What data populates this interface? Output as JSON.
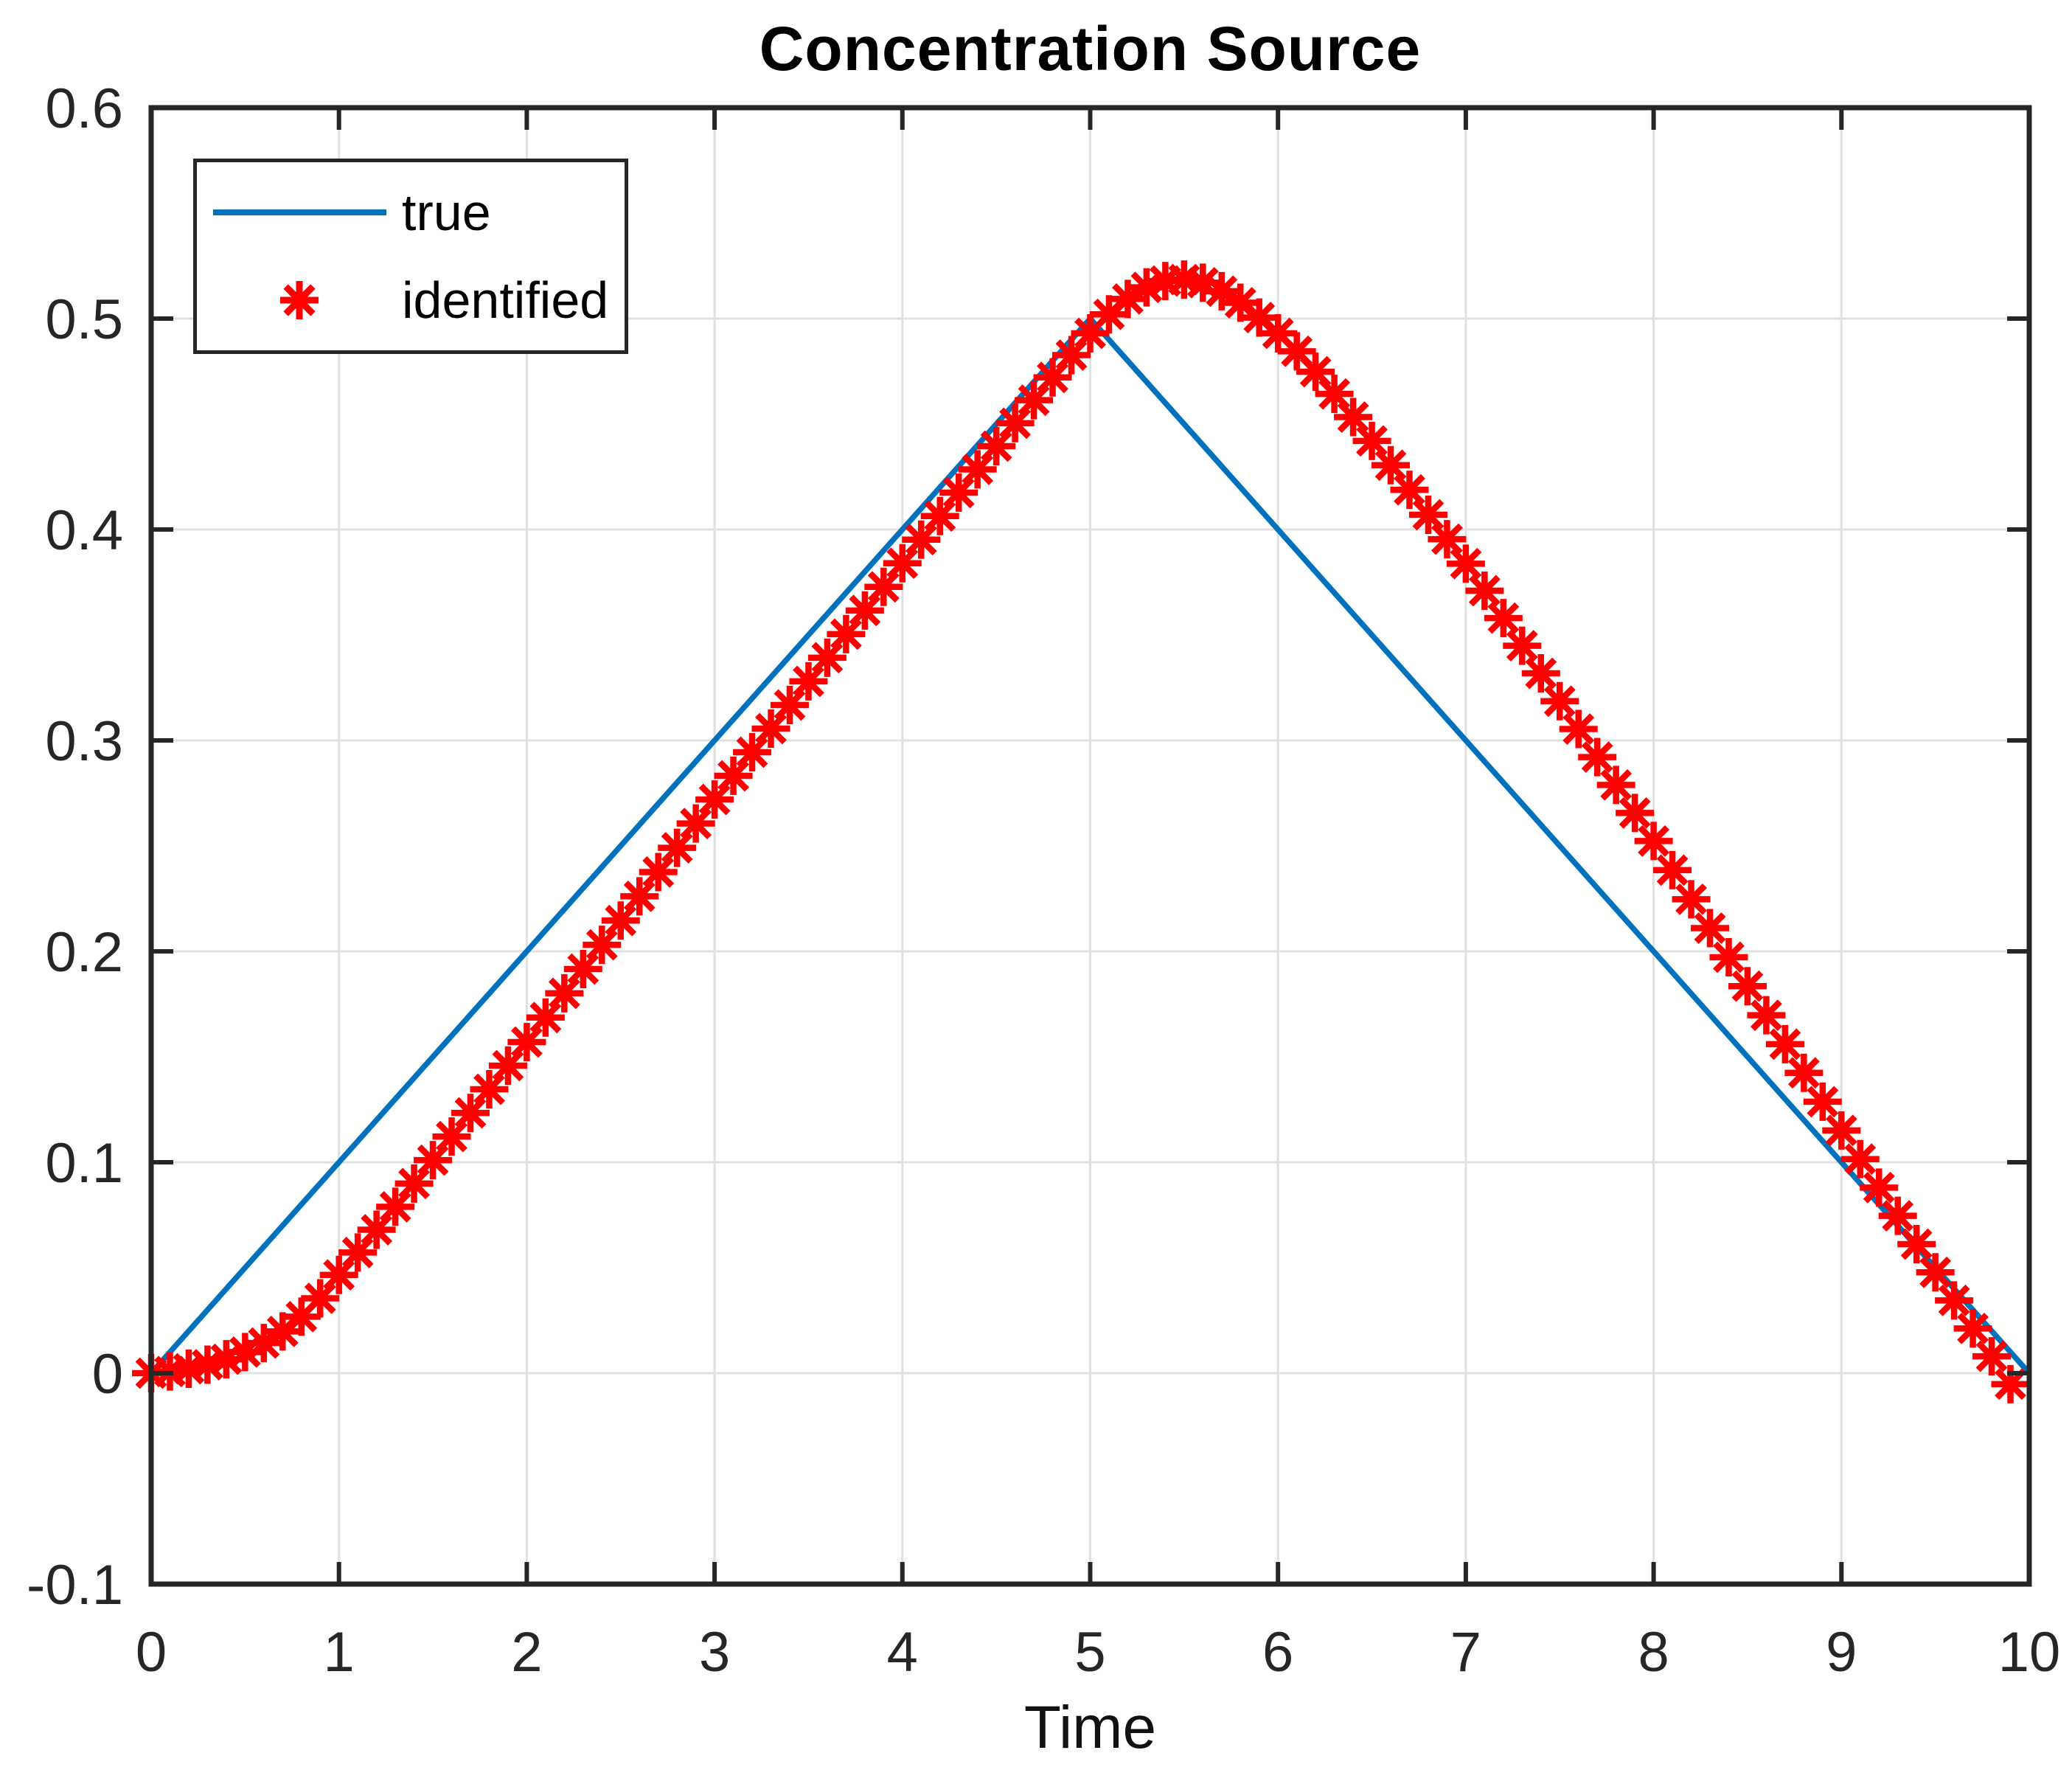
{
  "window": {
    "background": "#ffffff"
  },
  "figure": {
    "title": "Concentration Source",
    "xlabel": "Time"
  },
  "legend": {
    "position": "northwest",
    "entries": [
      {
        "label": "true",
        "sample": "line",
        "color": "#0072bd"
      },
      {
        "label": "identified",
        "sample": "asterisk",
        "color": "#ff0000"
      }
    ]
  },
  "chart_data": {
    "type": "line",
    "title": "Concentration Source",
    "xlabel": "Time",
    "ylabel": "",
    "xlim": [
      0,
      10
    ],
    "ylim": [
      -0.1,
      0.6
    ],
    "x_ticks": [
      0,
      1,
      2,
      3,
      4,
      5,
      6,
      7,
      8,
      9,
      10
    ],
    "x_tick_labels": [
      "0",
      "1",
      "2",
      "3",
      "4",
      "5",
      "6",
      "7",
      "8",
      "9",
      "10"
    ],
    "y_ticks": [
      -0.1,
      0,
      0.1,
      0.2,
      0.3,
      0.4,
      0.5,
      0.6
    ],
    "y_tick_labels": [
      "-0.1",
      "0",
      "0.1",
      "0.2",
      "0.3",
      "0.4",
      "0.5",
      "0.6"
    ],
    "grid": true,
    "legend_position": "northwest",
    "styles": {
      "grid_color": "#e0e0e0",
      "axes_color": "#262626",
      "tick_label_color": "#262626",
      "title_color": "#000000",
      "true_color": "#0072bd",
      "identified_color": "#ff0000"
    },
    "series": [
      {
        "name": "true",
        "style": "solid-line",
        "color": "#0072bd",
        "x": [
          0,
          5,
          10
        ],
        "y": [
          0,
          0.5,
          0
        ]
      },
      {
        "name": "identified",
        "style": "asterisk-markers",
        "color": "#ff0000",
        "x": [
          0.0,
          0.1,
          0.2,
          0.3,
          0.4,
          0.5,
          0.6,
          0.7,
          0.8,
          0.9,
          1.0,
          1.1,
          1.2,
          1.3,
          1.4,
          1.5,
          1.6,
          1.7,
          1.8,
          1.9,
          2.0,
          2.1,
          2.2,
          2.3,
          2.4,
          2.5,
          2.6,
          2.7,
          2.8,
          2.9,
          3.0,
          3.1,
          3.2,
          3.3,
          3.4,
          3.5,
          3.6,
          3.7,
          3.8,
          3.9,
          4.0,
          4.1,
          4.2,
          4.3,
          4.4,
          4.5,
          4.6,
          4.7,
          4.8,
          4.9,
          5.0,
          5.1,
          5.2,
          5.3,
          5.4,
          5.5,
          5.6,
          5.7,
          5.8,
          5.9,
          6.0,
          6.1,
          6.2,
          6.3,
          6.4,
          6.5,
          6.6,
          6.7,
          6.8,
          6.9,
          7.0,
          7.1,
          7.2,
          7.3,
          7.4,
          7.5,
          7.6,
          7.7,
          7.8,
          7.9,
          8.0,
          8.1,
          8.2,
          8.3,
          8.4,
          8.5,
          8.6,
          8.7,
          8.8,
          8.9,
          9.0,
          9.1,
          9.2,
          9.3,
          9.4,
          9.5,
          9.6,
          9.7,
          9.8,
          9.9
        ],
        "y": [
          0.0,
          0.0008,
          0.0021,
          0.004,
          0.0066,
          0.01,
          0.0143,
          0.0198,
          0.0268,
          0.0355,
          0.0466,
          0.0572,
          0.068,
          0.0789,
          0.0899,
          0.101,
          0.1122,
          0.1234,
          0.1346,
          0.1458,
          0.157,
          0.1686,
          0.1801,
          0.1916,
          0.2031,
          0.2146,
          0.2261,
          0.2376,
          0.2491,
          0.2606,
          0.272,
          0.2832,
          0.2944,
          0.3056,
          0.3168,
          0.328,
          0.3392,
          0.3504,
          0.3616,
          0.3728,
          0.384,
          0.3952,
          0.4064,
          0.4175,
          0.4285,
          0.4395,
          0.4504,
          0.4613,
          0.4721,
          0.4827,
          0.493,
          0.502,
          0.5093,
          0.5148,
          0.5178,
          0.5185,
          0.517,
          0.513,
          0.5075,
          0.5005,
          0.493,
          0.4845,
          0.4748,
          0.4643,
          0.4533,
          0.442,
          0.4305,
          0.4188,
          0.407,
          0.3954,
          0.3838,
          0.371,
          0.358,
          0.3449,
          0.3318,
          0.3186,
          0.3054,
          0.2921,
          0.2789,
          0.2656,
          0.2523,
          0.2385,
          0.2247,
          0.211,
          0.1972,
          0.1835,
          0.1697,
          0.156,
          0.1424,
          0.1287,
          0.1151,
          0.1015,
          0.088,
          0.0746,
          0.0612,
          0.0478,
          0.0345,
          0.0212,
          0.008,
          -0.0052
        ]
      }
    ]
  }
}
